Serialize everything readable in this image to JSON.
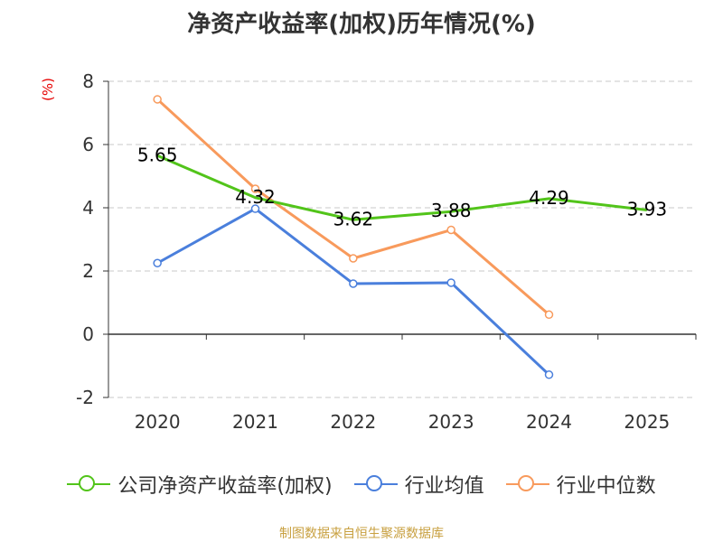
{
  "chart_data": {
    "type": "line",
    "title": "净资产收益率(加权)历年情况(%)",
    "ylabel": "(%)",
    "xlabel": "",
    "categories": [
      "2020",
      "2021",
      "2022",
      "2023",
      "2024",
      "2025"
    ],
    "ylim": [
      -2,
      8
    ],
    "yticks": [
      -2,
      0,
      2,
      4,
      6,
      8
    ],
    "grid": true,
    "series": [
      {
        "name": "公司净资产收益率(加权)",
        "color": "#52c41a",
        "labeled": true,
        "values": [
          5.65,
          4.32,
          3.62,
          3.88,
          4.29,
          3.93
        ],
        "labels": [
          "5.65",
          "4.32",
          "3.62",
          "3.88",
          "4.29",
          "3.93"
        ]
      },
      {
        "name": "行业均值",
        "color": "#4a7fdc",
        "labeled": false,
        "values": [
          2.25,
          3.97,
          1.6,
          1.63,
          -1.28,
          null
        ]
      },
      {
        "name": "行业中位数",
        "color": "#f89a5c",
        "labeled": false,
        "values": [
          7.43,
          4.6,
          2.4,
          3.3,
          0.62,
          null
        ]
      }
    ],
    "legend_position": "bottom",
    "source": "制图数据来自恒生聚源数据库"
  }
}
